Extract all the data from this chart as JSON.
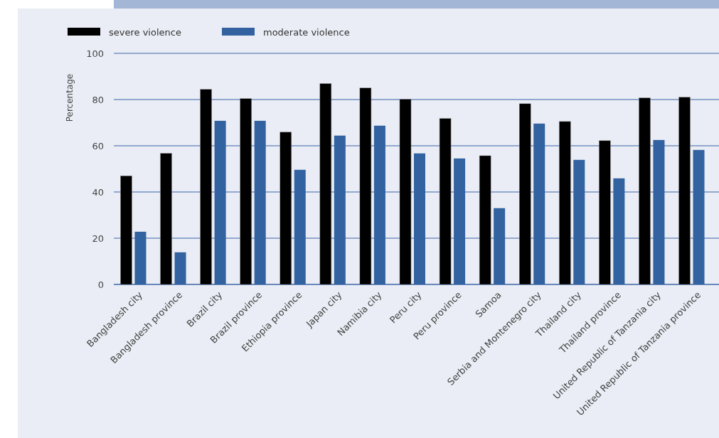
{
  "chart_data": {
    "type": "bar",
    "ylabel": "Percentage",
    "categories": [
      "Bangladesh city",
      "Bangladesh province",
      "Brazil city",
      "Brazil province",
      "Ethiopia province",
      "Japan city",
      "Namibia city",
      "Peru city",
      "Peru province",
      "Samoa",
      "Serbia and Montenegro city",
      "Thailand city",
      "Thailand province",
      "United Republic of Tanzania city",
      "United Republic of Tanzania province"
    ],
    "series": [
      {
        "name": "severe violence",
        "color": "#000000",
        "values": [
          47,
          56.7,
          84.4,
          80.4,
          65.9,
          86.9,
          85,
          80.1,
          71.8,
          55.7,
          78.2,
          70.5,
          62.2,
          80.7,
          81
        ]
      },
      {
        "name": "moderate violence",
        "color": "#32629f",
        "values": [
          22.8,
          13.9,
          70.8,
          70.8,
          49.6,
          64.4,
          68.7,
          56.7,
          54.5,
          33,
          69.6,
          53.9,
          45.9,
          62.5,
          58.2
        ]
      }
    ],
    "ylim": [
      0,
      100
    ],
    "yticks": [
      0,
      20,
      40,
      60,
      80,
      100
    ],
    "grid": "y",
    "legend": "top left"
  }
}
